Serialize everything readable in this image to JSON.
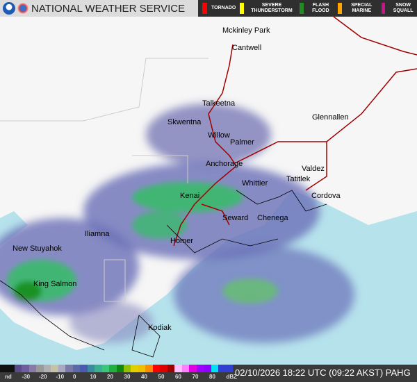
{
  "header": {
    "title": "NATIONAL WEATHER SERVICE",
    "logos": [
      "noaa-logo",
      "nws-logo"
    ]
  },
  "warnings": [
    {
      "label": "TORNADO",
      "color": "#ff0000"
    },
    {
      "label": "SEVERE THUNDERSTORM",
      "color": "#ffff00"
    },
    {
      "label": "FLASH FLOOD",
      "color": "#228b22"
    },
    {
      "label": "SPECIAL MARINE",
      "color": "#ffa500"
    },
    {
      "label": "SNOW SQUALL",
      "color": "#c71585"
    }
  ],
  "map": {
    "land_color": "#f6f6f6",
    "water_color": "#b6e2ec",
    "highway_color": "#a00000",
    "cities": [
      "Mckinley Park",
      "Cantwell",
      "Talkeetna",
      "Skwentna",
      "Willow",
      "Glennallen",
      "Palmer",
      "Anchorage",
      "Valdez",
      "Whittier",
      "Tatitlek",
      "Cordova",
      "Kenai",
      "Seward",
      "Chenega",
      "Iliamna",
      "Homer",
      "New Stuyahok",
      "King Salmon",
      "Kodiak"
    ]
  },
  "legend": {
    "ticks": [
      "nd",
      "-30",
      "-20",
      "-10",
      "0",
      "10",
      "20",
      "30",
      "40",
      "50",
      "60",
      "70",
      "80",
      "dBZ"
    ],
    "colors": [
      "#111111",
      "#111111",
      "#5a4a8a",
      "#6e5e9e",
      "#8a7aa8",
      "#9a9a9a",
      "#b0b0b0",
      "#c4c4a4",
      "#a8a8c0",
      "#7a7aa8",
      "#5a6aa8",
      "#4a5ab0",
      "#3a8aa0",
      "#3ab090",
      "#3ac878",
      "#20b040",
      "#108810",
      "#90c000",
      "#e0d000",
      "#f0c000",
      "#ff8c00",
      "#ff0000",
      "#e00000",
      "#a00000",
      "#ffc0ff",
      "#ff80ff",
      "#e000e0",
      "#a000ff",
      "#9000ff",
      "#00e0f0",
      "#3040d0",
      "#3040d0"
    ]
  },
  "footer": {
    "timestamp": "02/10/2026 18:22 UTC (09:22 AKST) PAHG"
  }
}
